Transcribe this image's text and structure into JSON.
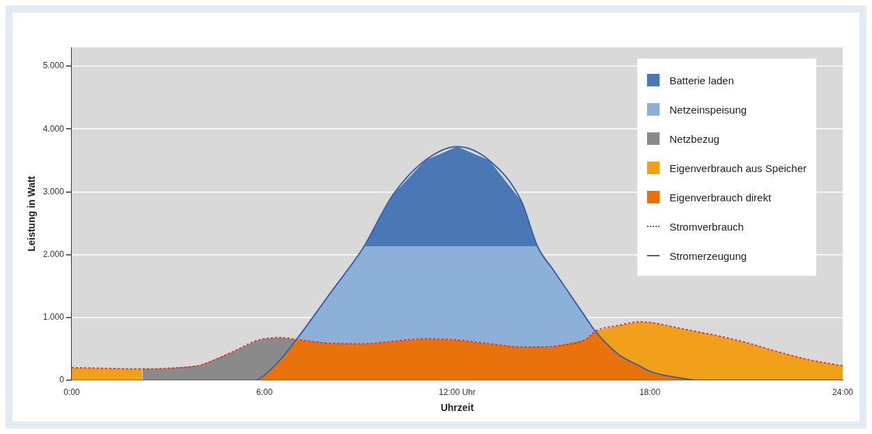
{
  "chart_data": {
    "type": "area",
    "stacked": true,
    "xlabel": "Uhrzeit",
    "ylabel": "Leistung in Watt",
    "x": [
      0,
      1,
      2,
      2.2,
      2.21,
      3,
      4,
      5,
      5.75,
      6,
      6.5,
      7,
      8,
      9,
      9.1,
      10,
      11,
      12,
      13,
      14,
      14.5,
      15,
      16,
      16.3,
      17,
      17.7,
      18,
      19,
      19.5,
      20,
      21,
      22,
      23,
      24
    ],
    "series": [
      {
        "name": "Eigenverbrauch direkt",
        "color": "#e8720c",
        "values": [
          null,
          null,
          null,
          null,
          null,
          null,
          null,
          null,
          0,
          80,
          330,
          650,
          590,
          580,
          580,
          620,
          660,
          640,
          580,
          530,
          530,
          540,
          650,
          780,
          420,
          220,
          140,
          30,
          0,
          null,
          null,
          null,
          null,
          null
        ]
      },
      {
        "name": "Eigenverbrauch aus Speicher",
        "color": "#f0a01a",
        "values": [
          200,
          190,
          180,
          180,
          null,
          null,
          null,
          null,
          null,
          null,
          null,
          null,
          null,
          null,
          null,
          null,
          null,
          null,
          null,
          null,
          null,
          null,
          null,
          0,
          450,
          710,
          780,
          790,
          770,
          720,
          600,
          450,
          320,
          230
        ]
      },
      {
        "name": "Netzbezug",
        "color": "#8a8a8a",
        "values": [
          null,
          null,
          null,
          null,
          180,
          190,
          240,
          450,
          630,
          580,
          350,
          0,
          null,
          null,
          null,
          null,
          null,
          null,
          null,
          null,
          null,
          null,
          null,
          null,
          null,
          null,
          null,
          null,
          null,
          null,
          null,
          null,
          null,
          null
        ]
      },
      {
        "name": "Netzeinspeisung",
        "color": "#8cb0d8",
        "values": [
          null,
          null,
          null,
          null,
          null,
          null,
          null,
          null,
          null,
          null,
          null,
          0,
          760,
          1470,
          1550,
          1510,
          1470,
          1490,
          1550,
          1600,
          1600,
          1210,
          350,
          0,
          null,
          null,
          null,
          null,
          null,
          null,
          null,
          null,
          null,
          null
        ]
      },
      {
        "name": "Batterie laden",
        "color": "#4a78b5",
        "values": [
          null,
          null,
          null,
          null,
          null,
          null,
          null,
          null,
          null,
          null,
          null,
          null,
          null,
          null,
          0,
          820,
          1370,
          1590,
          1370,
          720,
          0,
          null,
          null,
          null,
          null,
          null,
          null,
          null,
          null,
          null,
          null,
          null,
          null,
          null
        ]
      },
      {
        "name": "Stromverbrauch",
        "type": "line",
        "line_style": "dotted",
        "color": "#e8312a",
        "values": [
          200,
          190,
          180,
          180,
          180,
          190,
          240,
          450,
          630,
          660,
          680,
          650,
          590,
          580,
          580,
          620,
          660,
          640,
          580,
          530,
          530,
          540,
          650,
          780,
          870,
          930,
          920,
          820,
          770,
          720,
          600,
          450,
          320,
          230
        ]
      },
      {
        "name": "Stromerzeugung",
        "type": "line",
        "line_style": "solid",
        "color": "#3c5fa8",
        "values": [
          null,
          null,
          null,
          null,
          null,
          null,
          null,
          null,
          0,
          80,
          330,
          650,
          1350,
          2050,
          2130,
          2950,
          3500,
          3720,
          3500,
          2850,
          2130,
          1750,
          1000,
          780,
          420,
          220,
          140,
          30,
          0,
          0,
          0,
          0,
          0,
          0
        ]
      }
    ],
    "xlim": [
      0,
      24
    ],
    "xticks": [
      {
        "value": 0,
        "label": "0:00"
      },
      {
        "value": 6,
        "label": "6:00"
      },
      {
        "value": 12,
        "label": "12:00 Uhr"
      },
      {
        "value": 18,
        "label": "18:00"
      },
      {
        "value": 24,
        "label": "24:00"
      }
    ],
    "ylim": [
      0,
      5300
    ],
    "yticks": [
      0,
      {
        "value": 1000,
        "label": "1.000"
      },
      {
        "value": 2000,
        "label": "2.000"
      },
      {
        "value": 3000,
        "label": "3.000"
      },
      {
        "value": 4000,
        "label": "4.000"
      },
      {
        "value": 5000,
        "label": "5.000"
      }
    ],
    "grid": "y",
    "legend": "top right"
  }
}
